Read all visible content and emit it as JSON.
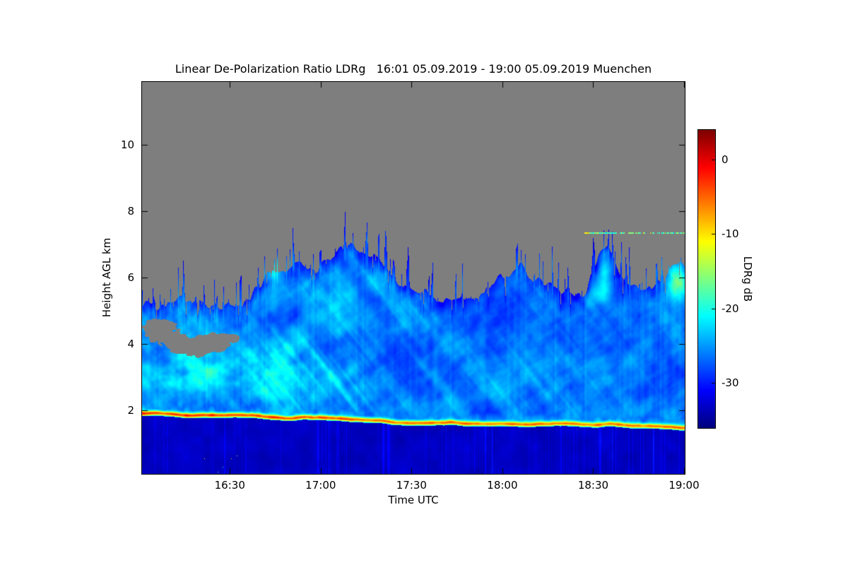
{
  "chart_data": {
    "type": "heatmap",
    "title": "Linear De-Polarization Ratio LDRg   16:01 05.09.2019 - 19:00 05.09.2019 Muenchen",
    "xlabel": "Time UTC",
    "ylabel": "Height AGL km",
    "time_start": "16:01",
    "time_end": "19:00",
    "duration_min": 179,
    "x_ticks": [
      "16:30",
      "17:00",
      "17:30",
      "18:00",
      "18:30",
      "19:00"
    ],
    "x_tick_minutes": [
      29,
      59,
      89,
      119,
      149,
      179
    ],
    "y_ticks": [
      2,
      4,
      6,
      8,
      10
    ],
    "y_range_km": [
      0.1,
      11.9
    ],
    "colorbar": {
      "label": "LDRg dB",
      "ticks": [
        0,
        -10,
        -20,
        -30
      ],
      "range": [
        -36,
        4
      ],
      "colormap": "jet"
    },
    "no_data_color": "#7e7e7e",
    "render": {
      "cloud_top_profile_km": [
        [
          0.0,
          5.25
        ],
        [
          0.04,
          5.1
        ],
        [
          0.08,
          5.35
        ],
        [
          0.12,
          5.15
        ],
        [
          0.16,
          5.3
        ],
        [
          0.2,
          5.55
        ],
        [
          0.23,
          6.2
        ],
        [
          0.26,
          6.05
        ],
        [
          0.29,
          6.45
        ],
        [
          0.32,
          6.3
        ],
        [
          0.35,
          6.75
        ],
        [
          0.38,
          6.9
        ],
        [
          0.41,
          6.55
        ],
        [
          0.44,
          6.3
        ],
        [
          0.48,
          5.9
        ],
        [
          0.52,
          5.6
        ],
        [
          0.56,
          5.45
        ],
        [
          0.6,
          5.3
        ],
        [
          0.64,
          5.55
        ],
        [
          0.67,
          6.1
        ],
        [
          0.7,
          6.4
        ],
        [
          0.73,
          6.15
        ],
        [
          0.76,
          5.7
        ],
        [
          0.79,
          5.45
        ],
        [
          0.82,
          5.6
        ],
        [
          0.84,
          6.6
        ],
        [
          0.86,
          6.9
        ],
        [
          0.88,
          6.35
        ],
        [
          0.91,
          5.8
        ],
        [
          0.94,
          5.95
        ],
        [
          0.97,
          6.15
        ],
        [
          1.0,
          6.5
        ]
      ],
      "melting_band_height_km": [
        [
          0.0,
          1.9
        ],
        [
          0.1,
          1.87
        ],
        [
          0.2,
          1.84
        ],
        [
          0.3,
          1.77
        ],
        [
          0.4,
          1.7
        ],
        [
          0.5,
          1.63
        ],
        [
          0.6,
          1.6
        ],
        [
          0.7,
          1.62
        ],
        [
          0.8,
          1.6
        ],
        [
          0.9,
          1.56
        ],
        [
          1.0,
          1.5
        ]
      ],
      "melting_band_peak_ldr_db": -11,
      "cloud_ldr_db_range": [
        -32,
        -22
      ],
      "below_band_ldr_db": -35,
      "aircraft_layer": {
        "height_km": 7.35,
        "start_frac": 0.815,
        "end_frac": 1.0
      }
    }
  }
}
